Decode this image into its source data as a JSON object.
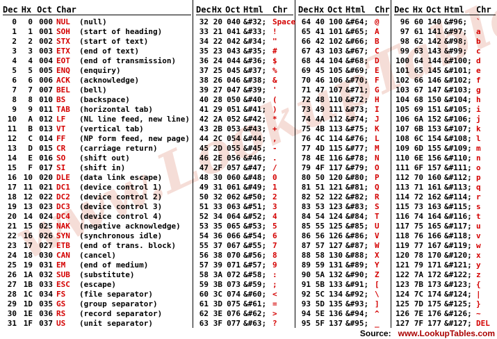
{
  "colors": {
    "red": "#d40000",
    "footer_red": "#aa0000",
    "watermark_pink": "#eec3b8",
    "text": "#000000",
    "background": "#ffffff"
  },
  "watermark": "www.LookupTables.com",
  "footer": {
    "source_label": "Source:",
    "source_value": "www.LookupTables.com"
  },
  "groups": [
    {
      "id": "ascii-control-0-31",
      "headers": [
        "Dec",
        "Hx",
        "Oct",
        "Char"
      ],
      "rows": [
        [
          "0",
          "0",
          "000",
          "NUL",
          "(null)"
        ],
        [
          "1",
          "1",
          "001",
          "SOH",
          "(start of heading)"
        ],
        [
          "2",
          "2",
          "002",
          "STX",
          "(start of text)"
        ],
        [
          "3",
          "3",
          "003",
          "ETX",
          "(end of text)"
        ],
        [
          "4",
          "4",
          "004",
          "EOT",
          "(end of transmission)"
        ],
        [
          "5",
          "5",
          "005",
          "ENQ",
          "(enquiry)"
        ],
        [
          "6",
          "6",
          "006",
          "ACK",
          "(acknowledge)"
        ],
        [
          "7",
          "7",
          "007",
          "BEL",
          "(bell)"
        ],
        [
          "8",
          "8",
          "010",
          "BS",
          "(backspace)"
        ],
        [
          "9",
          "9",
          "011",
          "TAB",
          "(horizontal tab)"
        ],
        [
          "10",
          "A",
          "012",
          "LF",
          "(NL line feed, new line)"
        ],
        [
          "11",
          "B",
          "013",
          "VT",
          "(vertical tab)"
        ],
        [
          "12",
          "C",
          "014",
          "FF",
          "(NP form feed, new page)"
        ],
        [
          "13",
          "D",
          "015",
          "CR",
          "(carriage return)"
        ],
        [
          "14",
          "E",
          "016",
          "SO",
          "(shift out)"
        ],
        [
          "15",
          "F",
          "017",
          "SI",
          "(shift in)"
        ],
        [
          "16",
          "10",
          "020",
          "DLE",
          "(data link escape)"
        ],
        [
          "17",
          "11",
          "021",
          "DC1",
          "(device control 1)"
        ],
        [
          "18",
          "12",
          "022",
          "DC2",
          "(device control 2)"
        ],
        [
          "19",
          "13",
          "023",
          "DC3",
          "(device control 3)"
        ],
        [
          "20",
          "14",
          "024",
          "DC4",
          "(device control 4)"
        ],
        [
          "21",
          "15",
          "025",
          "NAK",
          "(negative acknowledge)"
        ],
        [
          "22",
          "16",
          "026",
          "SYN",
          "(synchronous idle)"
        ],
        [
          "23",
          "17",
          "027",
          "ETB",
          "(end of trans. block)"
        ],
        [
          "24",
          "18",
          "030",
          "CAN",
          "(cancel)"
        ],
        [
          "25",
          "19",
          "031",
          "EM",
          "(end of medium)"
        ],
        [
          "26",
          "1A",
          "032",
          "SUB",
          "(substitute)"
        ],
        [
          "27",
          "1B",
          "033",
          "ESC",
          "(escape)"
        ],
        [
          "28",
          "1C",
          "034",
          "FS",
          "(file separator)"
        ],
        [
          "29",
          "1D",
          "035",
          "GS",
          "(group separator)"
        ],
        [
          "30",
          "1E",
          "036",
          "RS",
          "(record separator)"
        ],
        [
          "31",
          "1F",
          "037",
          "US",
          "(unit separator)"
        ]
      ]
    },
    {
      "id": "ascii-printable-32-63",
      "headers": [
        "Dec",
        "Hx",
        "Oct",
        "Html",
        "Chr"
      ],
      "rows": [
        [
          "32",
          "20",
          "040",
          "&#32;",
          "Space"
        ],
        [
          "33",
          "21",
          "041",
          "&#33;",
          "!"
        ],
        [
          "34",
          "22",
          "042",
          "&#34;",
          "\""
        ],
        [
          "35",
          "23",
          "043",
          "&#35;",
          "#"
        ],
        [
          "36",
          "24",
          "044",
          "&#36;",
          "$"
        ],
        [
          "37",
          "25",
          "045",
          "&#37;",
          "%"
        ],
        [
          "38",
          "26",
          "046",
          "&#38;",
          "&"
        ],
        [
          "39",
          "27",
          "047",
          "&#39;",
          "'"
        ],
        [
          "40",
          "28",
          "050",
          "&#40;",
          "("
        ],
        [
          "41",
          "29",
          "051",
          "&#41;",
          ")"
        ],
        [
          "42",
          "2A",
          "052",
          "&#42;",
          "*"
        ],
        [
          "43",
          "2B",
          "053",
          "&#43;",
          "+"
        ],
        [
          "44",
          "2C",
          "054",
          "&#44;",
          ","
        ],
        [
          "45",
          "2D",
          "055",
          "&#45;",
          "-"
        ],
        [
          "46",
          "2E",
          "056",
          "&#46;",
          "."
        ],
        [
          "47",
          "2F",
          "057",
          "&#47;",
          "/"
        ],
        [
          "48",
          "30",
          "060",
          "&#48;",
          "0"
        ],
        [
          "49",
          "31",
          "061",
          "&#49;",
          "1"
        ],
        [
          "50",
          "32",
          "062",
          "&#50;",
          "2"
        ],
        [
          "51",
          "33",
          "063",
          "&#51;",
          "3"
        ],
        [
          "52",
          "34",
          "064",
          "&#52;",
          "4"
        ],
        [
          "53",
          "35",
          "065",
          "&#53;",
          "5"
        ],
        [
          "54",
          "36",
          "066",
          "&#54;",
          "6"
        ],
        [
          "55",
          "37",
          "067",
          "&#55;",
          "7"
        ],
        [
          "56",
          "38",
          "070",
          "&#56;",
          "8"
        ],
        [
          "57",
          "39",
          "071",
          "&#57;",
          "9"
        ],
        [
          "58",
          "3A",
          "072",
          "&#58;",
          ":"
        ],
        [
          "59",
          "3B",
          "073",
          "&#59;",
          ";"
        ],
        [
          "60",
          "3C",
          "074",
          "&#60;",
          "<"
        ],
        [
          "61",
          "3D",
          "075",
          "&#61;",
          "="
        ],
        [
          "62",
          "3E",
          "076",
          "&#62;",
          ">"
        ],
        [
          "63",
          "3F",
          "077",
          "&#63;",
          "?"
        ]
      ]
    },
    {
      "id": "ascii-printable-64-95",
      "headers": [
        "Dec",
        "Hx",
        "Oct",
        "Html",
        "Chr"
      ],
      "rows": [
        [
          "64",
          "40",
          "100",
          "&#64;",
          "@"
        ],
        [
          "65",
          "41",
          "101",
          "&#65;",
          "A"
        ],
        [
          "66",
          "42",
          "102",
          "&#66;",
          "B"
        ],
        [
          "67",
          "43",
          "103",
          "&#67;",
          "C"
        ],
        [
          "68",
          "44",
          "104",
          "&#68;",
          "D"
        ],
        [
          "69",
          "45",
          "105",
          "&#69;",
          "E"
        ],
        [
          "70",
          "46",
          "106",
          "&#70;",
          "F"
        ],
        [
          "71",
          "47",
          "107",
          "&#71;",
          "G"
        ],
        [
          "72",
          "48",
          "110",
          "&#72;",
          "H"
        ],
        [
          "73",
          "49",
          "111",
          "&#73;",
          "I"
        ],
        [
          "74",
          "4A",
          "112",
          "&#74;",
          "J"
        ],
        [
          "75",
          "4B",
          "113",
          "&#75;",
          "K"
        ],
        [
          "76",
          "4C",
          "114",
          "&#76;",
          "L"
        ],
        [
          "77",
          "4D",
          "115",
          "&#77;",
          "M"
        ],
        [
          "78",
          "4E",
          "116",
          "&#78;",
          "N"
        ],
        [
          "79",
          "4F",
          "117",
          "&#79;",
          "O"
        ],
        [
          "80",
          "50",
          "120",
          "&#80;",
          "P"
        ],
        [
          "81",
          "51",
          "121",
          "&#81;",
          "Q"
        ],
        [
          "82",
          "52",
          "122",
          "&#82;",
          "R"
        ],
        [
          "83",
          "53",
          "123",
          "&#83;",
          "S"
        ],
        [
          "84",
          "54",
          "124",
          "&#84;",
          "T"
        ],
        [
          "85",
          "55",
          "125",
          "&#85;",
          "U"
        ],
        [
          "86",
          "56",
          "126",
          "&#86;",
          "V"
        ],
        [
          "87",
          "57",
          "127",
          "&#87;",
          "W"
        ],
        [
          "88",
          "58",
          "130",
          "&#88;",
          "X"
        ],
        [
          "89",
          "59",
          "131",
          "&#89;",
          "Y"
        ],
        [
          "90",
          "5A",
          "132",
          "&#90;",
          "Z"
        ],
        [
          "91",
          "5B",
          "133",
          "&#91;",
          "["
        ],
        [
          "92",
          "5C",
          "134",
          "&#92;",
          "\\"
        ],
        [
          "93",
          "5D",
          "135",
          "&#93;",
          "]"
        ],
        [
          "94",
          "5E",
          "136",
          "&#94;",
          "^"
        ],
        [
          "95",
          "5F",
          "137",
          "&#95;",
          "_"
        ]
      ]
    },
    {
      "id": "ascii-printable-96-127",
      "headers": [
        "Dec",
        "Hx",
        "Oct",
        "Html",
        "Chr"
      ],
      "rows": [
        [
          "96",
          "60",
          "140",
          "&#96;",
          "`"
        ],
        [
          "97",
          "61",
          "141",
          "&#97;",
          "a"
        ],
        [
          "98",
          "62",
          "142",
          "&#98;",
          "b"
        ],
        [
          "99",
          "63",
          "143",
          "&#99;",
          "c"
        ],
        [
          "100",
          "64",
          "144",
          "&#100;",
          "d"
        ],
        [
          "101",
          "65",
          "145",
          "&#101;",
          "e"
        ],
        [
          "102",
          "66",
          "146",
          "&#102;",
          "f"
        ],
        [
          "103",
          "67",
          "147",
          "&#103;",
          "g"
        ],
        [
          "104",
          "68",
          "150",
          "&#104;",
          "h"
        ],
        [
          "105",
          "69",
          "151",
          "&#105;",
          "i"
        ],
        [
          "106",
          "6A",
          "152",
          "&#106;",
          "j"
        ],
        [
          "107",
          "6B",
          "153",
          "&#107;",
          "k"
        ],
        [
          "108",
          "6C",
          "154",
          "&#108;",
          "l"
        ],
        [
          "109",
          "6D",
          "155",
          "&#109;",
          "m"
        ],
        [
          "110",
          "6E",
          "156",
          "&#110;",
          "n"
        ],
        [
          "111",
          "6F",
          "157",
          "&#111;",
          "o"
        ],
        [
          "112",
          "70",
          "160",
          "&#112;",
          "p"
        ],
        [
          "113",
          "71",
          "161",
          "&#113;",
          "q"
        ],
        [
          "114",
          "72",
          "162",
          "&#114;",
          "r"
        ],
        [
          "115",
          "73",
          "163",
          "&#115;",
          "s"
        ],
        [
          "116",
          "74",
          "164",
          "&#116;",
          "t"
        ],
        [
          "117",
          "75",
          "165",
          "&#117;",
          "u"
        ],
        [
          "118",
          "76",
          "166",
          "&#118;",
          "v"
        ],
        [
          "119",
          "77",
          "167",
          "&#119;",
          "w"
        ],
        [
          "120",
          "78",
          "170",
          "&#120;",
          "x"
        ],
        [
          "121",
          "79",
          "171",
          "&#121;",
          "y"
        ],
        [
          "122",
          "7A",
          "172",
          "&#122;",
          "z"
        ],
        [
          "123",
          "7B",
          "173",
          "&#123;",
          "{"
        ],
        [
          "124",
          "7C",
          "174",
          "&#124;",
          "|"
        ],
        [
          "125",
          "7D",
          "175",
          "&#125;",
          "}"
        ],
        [
          "126",
          "7E",
          "176",
          "&#126;",
          "~"
        ],
        [
          "127",
          "7F",
          "177",
          "&#127;",
          "DEL"
        ]
      ]
    }
  ]
}
